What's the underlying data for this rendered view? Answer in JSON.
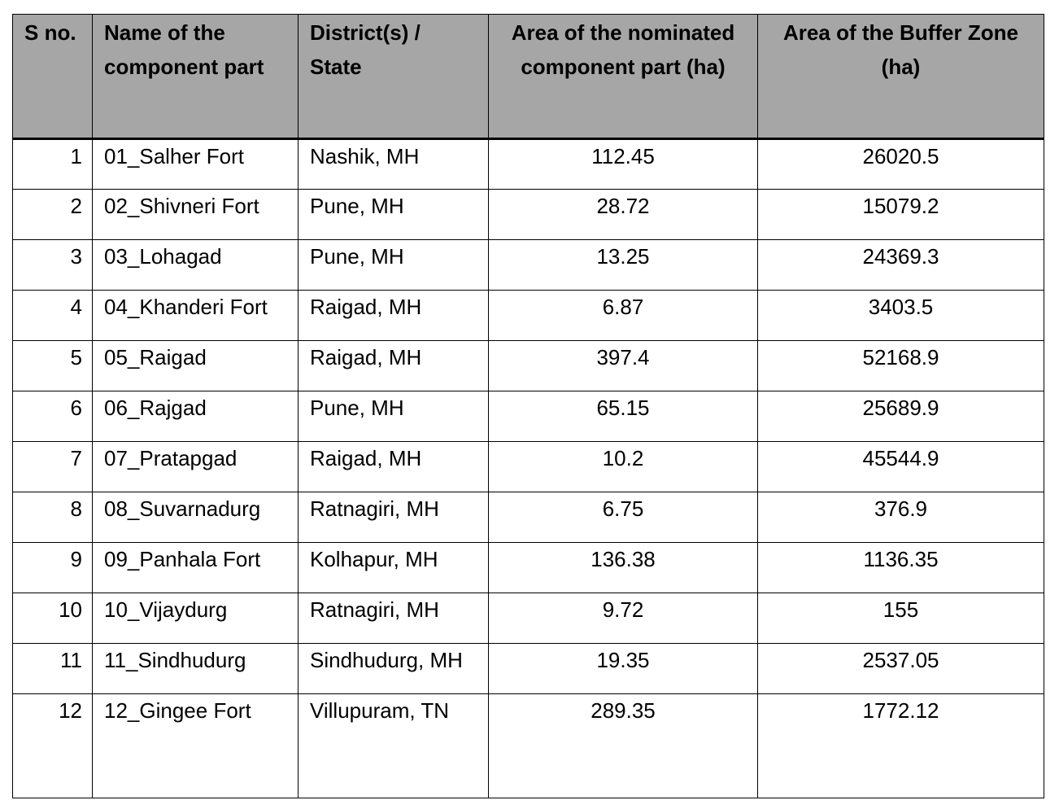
{
  "table": {
    "headers": {
      "sno": "S no.",
      "name": "Name of the component part",
      "district": "District(s) / State",
      "area": "Area of the nominated component part (ha)",
      "buffer": "Area of the Buffer Zone (ha)"
    },
    "rows": [
      {
        "sno": "1",
        "name": "01_Salher Fort",
        "district": "Nashik, MH",
        "area": "112.45",
        "buffer": "26020.5"
      },
      {
        "sno": "2",
        "name": "02_Shivneri Fort",
        "district": "Pune, MH",
        "area": "28.72",
        "buffer": "15079.2"
      },
      {
        "sno": "3",
        "name": "03_Lohagad",
        "district": "Pune, MH",
        "area": "13.25",
        "buffer": "24369.3"
      },
      {
        "sno": "4",
        "name": "04_Khanderi Fort",
        "district": "Raigad, MH",
        "area": "6.87",
        "buffer": "3403.5"
      },
      {
        "sno": "5",
        "name": "05_Raigad",
        "district": "Raigad, MH",
        "area": "397.4",
        "buffer": "52168.9"
      },
      {
        "sno": "6",
        "name": "06_Rajgad",
        "district": "Pune, MH",
        "area": "65.15",
        "buffer": "25689.9"
      },
      {
        "sno": "7",
        "name": "07_Pratapgad",
        "district": "Raigad, MH",
        "area": "10.2",
        "buffer": "45544.9"
      },
      {
        "sno": "8",
        "name": "08_Suvarnadurg",
        "district": "Ratnagiri, MH",
        "area": "6.75",
        "buffer": "376.9"
      },
      {
        "sno": "9",
        "name": "09_Panhala Fort",
        "district": "Kolhapur, MH",
        "area": "136.38",
        "buffer": "1136.35"
      },
      {
        "sno": "10",
        "name": "10_Vijaydurg",
        "district": "Ratnagiri, MH",
        "area": "9.72",
        "buffer": "155"
      },
      {
        "sno": "11",
        "name": "11_Sindhudurg",
        "district": "Sindhudurg, MH",
        "area": "19.35",
        "buffer": "2537.05"
      },
      {
        "sno": "12",
        "name": "12_Gingee Fort",
        "district": "Villupuram, TN",
        "area": "289.35",
        "buffer": "1772.12"
      }
    ]
  },
  "colors": {
    "header_background": "#a6a6a6",
    "border": "#000000",
    "text": "#000000"
  }
}
